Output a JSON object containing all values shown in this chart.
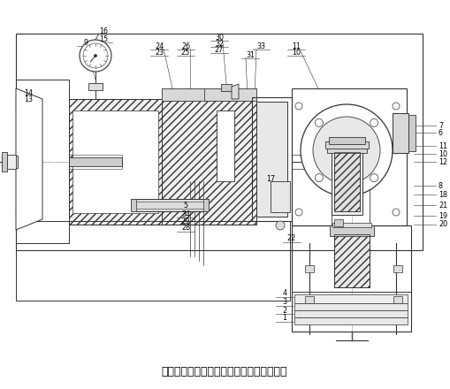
{
  "title": "图为燃气表电机阀气密性检测装置的俯视图",
  "title_fontsize": 9,
  "bg_color": "#ffffff",
  "lc": "#333333",
  "lw": 0.6
}
